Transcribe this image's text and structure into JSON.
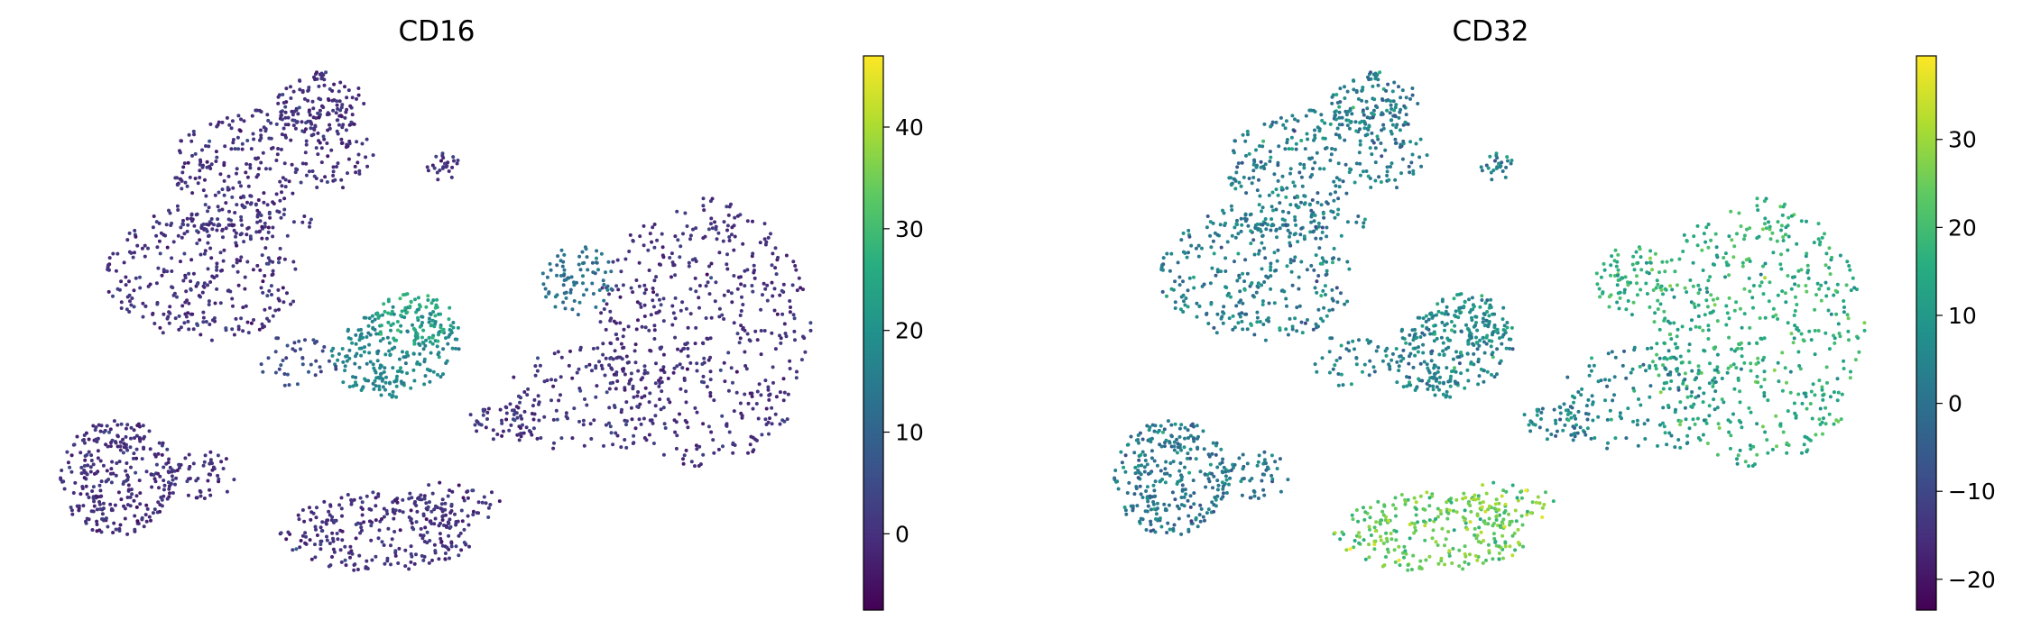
{
  "chart_data": [
    {
      "type": "scatter",
      "subtype": "umap-embedding",
      "title": "CD16",
      "colormap": "viridis",
      "colorbar": {
        "range": [
          -7.5,
          47
        ],
        "ticks": [
          0,
          10,
          20,
          30,
          40
        ],
        "tick_labels": [
          "0",
          "10",
          "20",
          "30",
          "40"
        ]
      },
      "axes_visible": false,
      "grid": false
    },
    {
      "type": "scatter",
      "subtype": "umap-embedding",
      "title": "CD32",
      "colormap": "viridis",
      "colorbar": {
        "range": [
          -23.5,
          39.5
        ],
        "ticks": [
          -20,
          -10,
          0,
          10,
          20,
          30
        ],
        "tick_labels": [
          "−20",
          "−10",
          "0",
          "10",
          "20",
          "30"
        ]
      },
      "axes_visible": false,
      "grid": false
    }
  ]
}
